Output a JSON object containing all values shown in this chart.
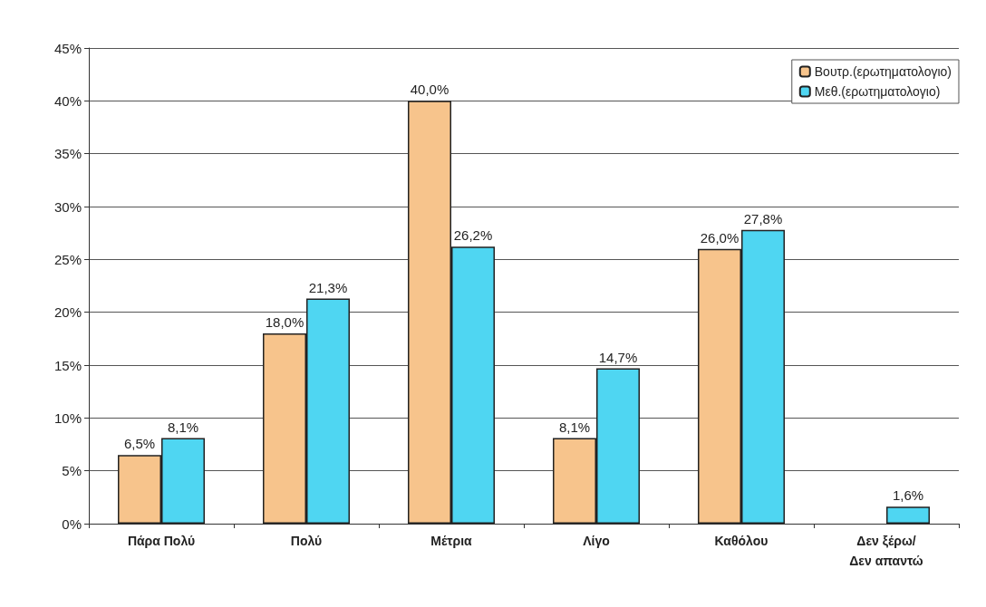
{
  "chart_data": {
    "type": "bar",
    "categories": [
      "Πάρα Πολύ",
      "Πολύ",
      "Μέτρια",
      "Λίγο",
      "Καθόλου",
      "Δεν ξέρω/Δεν απαντώ"
    ],
    "series": [
      {
        "name": "Βουτρ.(ερωτηματολογιο)",
        "color": "#f7c48c",
        "values": [
          6.5,
          18.0,
          40.0,
          8.1,
          26.0,
          null
        ],
        "value_labels": [
          "6,5%",
          "18,0%",
          "40,0%",
          "8,1%",
          "26,0%",
          null
        ]
      },
      {
        "name": "Μεθ.(ερωτηματολογιο)",
        "color": "#4fd6f2",
        "values": [
          8.1,
          21.3,
          26.2,
          14.7,
          27.8,
          1.6
        ],
        "value_labels": [
          "8,1%",
          "21,3%",
          "26,2%",
          "14,7%",
          "27,8%",
          "1,6%"
        ]
      }
    ],
    "ylim": [
      0,
      45
    ],
    "yticks": [
      {
        "value": 0,
        "label": "0%"
      },
      {
        "value": 5,
        "label": "5%"
      },
      {
        "value": 10,
        "label": "10%"
      },
      {
        "value": 15,
        "label": "15%"
      },
      {
        "value": 20,
        "label": "20%"
      },
      {
        "value": 25,
        "label": "25%"
      },
      {
        "value": 30,
        "label": "30%"
      },
      {
        "value": 35,
        "label": "35%"
      },
      {
        "value": 40,
        "label": "40%"
      },
      {
        "value": 45,
        "label": "45%"
      }
    ],
    "grid": "y",
    "legend": "top right"
  }
}
